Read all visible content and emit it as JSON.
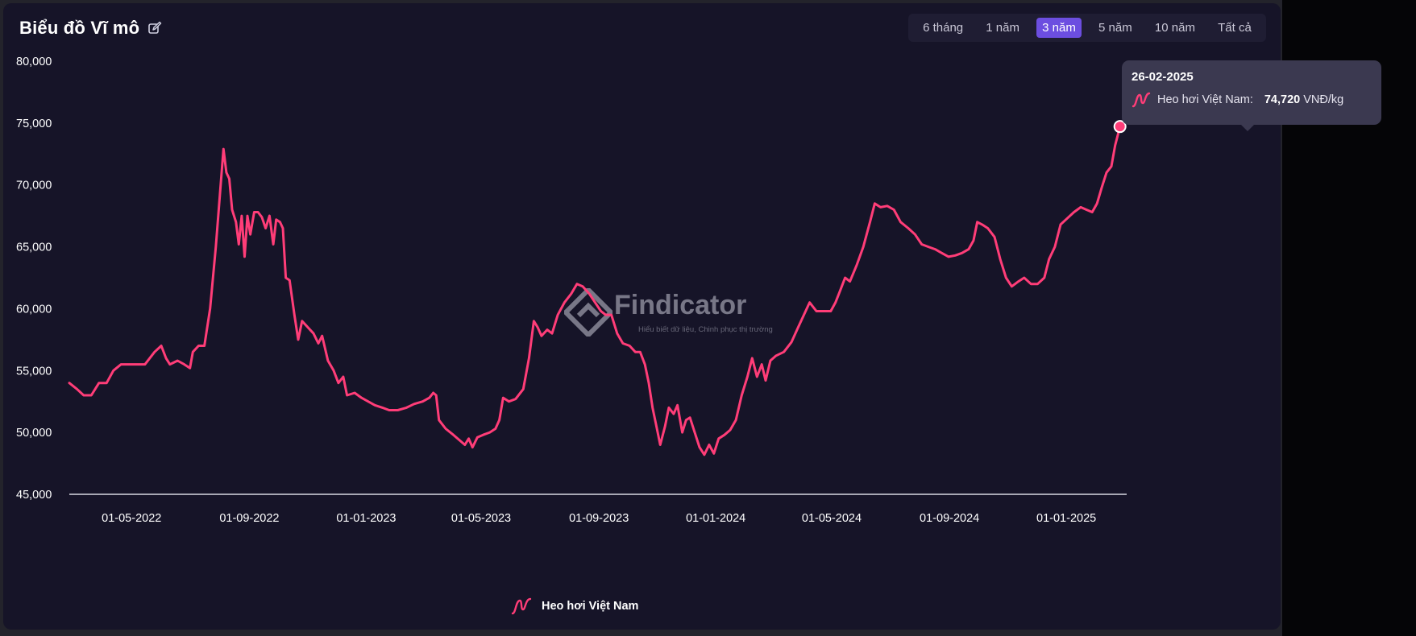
{
  "header": {
    "title": "Biểu đồ Vĩ mô",
    "ranges": [
      "6 tháng",
      "1 năm",
      "3 năm",
      "5 năm",
      "10 năm",
      "Tất cả"
    ],
    "active_range": "3 năm"
  },
  "tooltip": {
    "date": "26-02-2025",
    "series": "Heo hơi Việt Nam:",
    "value": "74,720",
    "unit": "VNĐ/kg"
  },
  "legend": {
    "label": "Heo hơi Việt Nam"
  },
  "watermark": {
    "brand": "Findicator",
    "tagline": "Hiểu biết dữ liệu, Chinh phục thị trường"
  },
  "colors": {
    "line": "#ff3d78",
    "background": "#161428",
    "accent": "#6c4ee0"
  },
  "chart_data": {
    "type": "line",
    "xlabel": "",
    "ylabel": "",
    "ylim": [
      45000,
      80000
    ],
    "yticks": [
      "80,000",
      "75,000",
      "70,000",
      "65,000",
      "60,000",
      "55,000",
      "50,000",
      "45,000"
    ],
    "xticks": [
      "01-05-2022",
      "01-09-2022",
      "01-01-2023",
      "01-05-2023",
      "01-09-2023",
      "01-01-2024",
      "01-05-2024",
      "01-09-2024",
      "01-01-2025"
    ],
    "xlim": [
      "2022-02-25",
      "2025-03-05"
    ],
    "series": [
      {
        "name": "Heo hơi Việt Nam",
        "points": [
          [
            "2022-02-25",
            54000
          ],
          [
            "2022-03-05",
            53500
          ],
          [
            "2022-03-12",
            53000
          ],
          [
            "2022-03-20",
            53000
          ],
          [
            "2022-03-28",
            54000
          ],
          [
            "2022-04-05",
            54000
          ],
          [
            "2022-04-12",
            55000
          ],
          [
            "2022-04-20",
            55500
          ],
          [
            "2022-05-01",
            55500
          ],
          [
            "2022-05-15",
            55500
          ],
          [
            "2022-05-25",
            56500
          ],
          [
            "2022-06-01",
            57000
          ],
          [
            "2022-06-06",
            56000
          ],
          [
            "2022-06-10",
            55500
          ],
          [
            "2022-06-18",
            55800
          ],
          [
            "2022-06-25",
            55500
          ],
          [
            "2022-07-01",
            55200
          ],
          [
            "2022-07-04",
            56500
          ],
          [
            "2022-07-10",
            57000
          ],
          [
            "2022-07-16",
            57000
          ],
          [
            "2022-07-22",
            60000
          ],
          [
            "2022-07-28",
            65000
          ],
          [
            "2022-08-02",
            70000
          ],
          [
            "2022-08-05",
            72900
          ],
          [
            "2022-08-08",
            71000
          ],
          [
            "2022-08-11",
            70500
          ],
          [
            "2022-08-14",
            68000
          ],
          [
            "2022-08-18",
            67000
          ],
          [
            "2022-08-21",
            65200
          ],
          [
            "2022-08-24",
            67500
          ],
          [
            "2022-08-27",
            64200
          ],
          [
            "2022-08-30",
            67500
          ],
          [
            "2022-09-02",
            66000
          ],
          [
            "2022-09-06",
            67800
          ],
          [
            "2022-09-10",
            67800
          ],
          [
            "2022-09-14",
            67400
          ],
          [
            "2022-09-18",
            66500
          ],
          [
            "2022-09-22",
            67500
          ],
          [
            "2022-09-26",
            65200
          ],
          [
            "2022-09-29",
            67200
          ],
          [
            "2022-10-03",
            67000
          ],
          [
            "2022-10-06",
            66500
          ],
          [
            "2022-10-09",
            62500
          ],
          [
            "2022-10-13",
            62300
          ],
          [
            "2022-10-18",
            59500
          ],
          [
            "2022-10-22",
            57500
          ],
          [
            "2022-10-26",
            59000
          ],
          [
            "2022-11-01",
            58500
          ],
          [
            "2022-11-07",
            58000
          ],
          [
            "2022-11-12",
            57200
          ],
          [
            "2022-11-16",
            57800
          ],
          [
            "2022-11-22",
            55800
          ],
          [
            "2022-11-28",
            55000
          ],
          [
            "2022-12-03",
            54000
          ],
          [
            "2022-12-08",
            54500
          ],
          [
            "2022-12-12",
            53000
          ],
          [
            "2022-12-20",
            53200
          ],
          [
            "2022-12-27",
            52800
          ],
          [
            "2023-01-03",
            52500
          ],
          [
            "2023-01-10",
            52200
          ],
          [
            "2023-01-18",
            52000
          ],
          [
            "2023-01-25",
            51800
          ],
          [
            "2023-02-03",
            51800
          ],
          [
            "2023-02-12",
            52000
          ],
          [
            "2023-02-20",
            52300
          ],
          [
            "2023-03-01",
            52500
          ],
          [
            "2023-03-08",
            52800
          ],
          [
            "2023-03-12",
            53200
          ],
          [
            "2023-03-15",
            53000
          ],
          [
            "2023-03-18",
            51000
          ],
          [
            "2023-03-25",
            50300
          ],
          [
            "2023-04-02",
            49800
          ],
          [
            "2023-04-08",
            49400
          ],
          [
            "2023-04-14",
            49000
          ],
          [
            "2023-04-18",
            49500
          ],
          [
            "2023-04-22",
            48800
          ],
          [
            "2023-04-27",
            49600
          ],
          [
            "2023-05-03",
            49800
          ],
          [
            "2023-05-10",
            50000
          ],
          [
            "2023-05-16",
            50300
          ],
          [
            "2023-05-20",
            51000
          ],
          [
            "2023-05-24",
            52800
          ],
          [
            "2023-05-30",
            52500
          ],
          [
            "2023-06-06",
            52700
          ],
          [
            "2023-06-14",
            53500
          ],
          [
            "2023-06-20",
            56000
          ],
          [
            "2023-06-25",
            59000
          ],
          [
            "2023-06-29",
            58500
          ],
          [
            "2023-07-03",
            57800
          ],
          [
            "2023-07-09",
            58300
          ],
          [
            "2023-07-14",
            58000
          ],
          [
            "2023-07-20",
            59500
          ],
          [
            "2023-07-27",
            60500
          ],
          [
            "2023-08-03",
            61200
          ],
          [
            "2023-08-09",
            62000
          ],
          [
            "2023-08-15",
            61800
          ],
          [
            "2023-08-22",
            61200
          ],
          [
            "2023-08-28",
            60500
          ],
          [
            "2023-09-03",
            59800
          ],
          [
            "2023-09-08",
            59500
          ],
          [
            "2023-09-14",
            59500
          ],
          [
            "2023-09-20",
            58000
          ],
          [
            "2023-09-26",
            57200
          ],
          [
            "2023-10-03",
            57000
          ],
          [
            "2023-10-09",
            56500
          ],
          [
            "2023-10-14",
            56500
          ],
          [
            "2023-10-19",
            55500
          ],
          [
            "2023-10-23",
            54000
          ],
          [
            "2023-10-27",
            52000
          ],
          [
            "2023-10-31",
            50500
          ],
          [
            "2023-11-04",
            49000
          ],
          [
            "2023-11-09",
            50500
          ],
          [
            "2023-11-13",
            52000
          ],
          [
            "2023-11-18",
            51500
          ],
          [
            "2023-11-22",
            52200
          ],
          [
            "2023-11-27",
            50000
          ],
          [
            "2023-12-01",
            51000
          ],
          [
            "2023-12-05",
            51200
          ],
          [
            "2023-12-10",
            50000
          ],
          [
            "2023-12-15",
            48800
          ],
          [
            "2023-12-20",
            48200
          ],
          [
            "2023-12-25",
            49000
          ],
          [
            "2023-12-30",
            48300
          ],
          [
            "2024-01-04",
            49500
          ],
          [
            "2024-01-10",
            49800
          ],
          [
            "2024-01-16",
            50200
          ],
          [
            "2024-01-22",
            51000
          ],
          [
            "2024-01-28",
            53000
          ],
          [
            "2024-02-03",
            54500
          ],
          [
            "2024-02-08",
            56000
          ],
          [
            "2024-02-13",
            54500
          ],
          [
            "2024-02-18",
            55500
          ],
          [
            "2024-02-22",
            54200
          ],
          [
            "2024-02-27",
            55800
          ],
          [
            "2024-03-04",
            56200
          ],
          [
            "2024-03-12",
            56500
          ],
          [
            "2024-03-20",
            57300
          ],
          [
            "2024-03-27",
            58500
          ],
          [
            "2024-04-02",
            59500
          ],
          [
            "2024-04-08",
            60500
          ],
          [
            "2024-04-15",
            59800
          ],
          [
            "2024-04-22",
            59800
          ],
          [
            "2024-04-30",
            59800
          ],
          [
            "2024-05-05",
            60500
          ],
          [
            "2024-05-10",
            61500
          ],
          [
            "2024-05-15",
            62500
          ],
          [
            "2024-05-20",
            62200
          ],
          [
            "2024-05-27",
            63500
          ],
          [
            "2024-06-03",
            65000
          ],
          [
            "2024-06-10",
            67000
          ],
          [
            "2024-06-15",
            68500
          ],
          [
            "2024-06-21",
            68200
          ],
          [
            "2024-06-28",
            68300
          ],
          [
            "2024-07-05",
            68000
          ],
          [
            "2024-07-12",
            67000
          ],
          [
            "2024-07-20",
            66500
          ],
          [
            "2024-07-27",
            66000
          ],
          [
            "2024-08-03",
            65200
          ],
          [
            "2024-08-10",
            65000
          ],
          [
            "2024-08-17",
            64800
          ],
          [
            "2024-08-24",
            64500
          ],
          [
            "2024-08-31",
            64200
          ],
          [
            "2024-09-07",
            64300
          ],
          [
            "2024-09-14",
            64500
          ],
          [
            "2024-09-21",
            64800
          ],
          [
            "2024-09-26",
            65500
          ],
          [
            "2024-09-30",
            67000
          ],
          [
            "2024-10-05",
            66800
          ],
          [
            "2024-10-11",
            66500
          ],
          [
            "2024-10-18",
            65800
          ],
          [
            "2024-10-24",
            64000
          ],
          [
            "2024-10-30",
            62500
          ],
          [
            "2024-11-05",
            61800
          ],
          [
            "2024-11-12",
            62200
          ],
          [
            "2024-11-18",
            62500
          ],
          [
            "2024-11-25",
            62000
          ],
          [
            "2024-12-02",
            62000
          ],
          [
            "2024-12-09",
            62500
          ],
          [
            "2024-12-14",
            64000
          ],
          [
            "2024-12-20",
            65000
          ],
          [
            "2024-12-26",
            66800
          ],
          [
            "2025-01-02",
            67300
          ],
          [
            "2025-01-09",
            67800
          ],
          [
            "2025-01-16",
            68200
          ],
          [
            "2025-01-22",
            68000
          ],
          [
            "2025-01-28",
            67800
          ],
          [
            "2025-02-02",
            68500
          ],
          [
            "2025-02-07",
            69800
          ],
          [
            "2025-02-12",
            71000
          ],
          [
            "2025-02-17",
            71500
          ],
          [
            "2025-02-21",
            73200
          ],
          [
            "2025-02-26",
            74720
          ]
        ]
      }
    ],
    "highlight": {
      "date": "2025-02-26",
      "value": 74720
    },
    "grid": false,
    "legend_position": "bottom-center"
  }
}
